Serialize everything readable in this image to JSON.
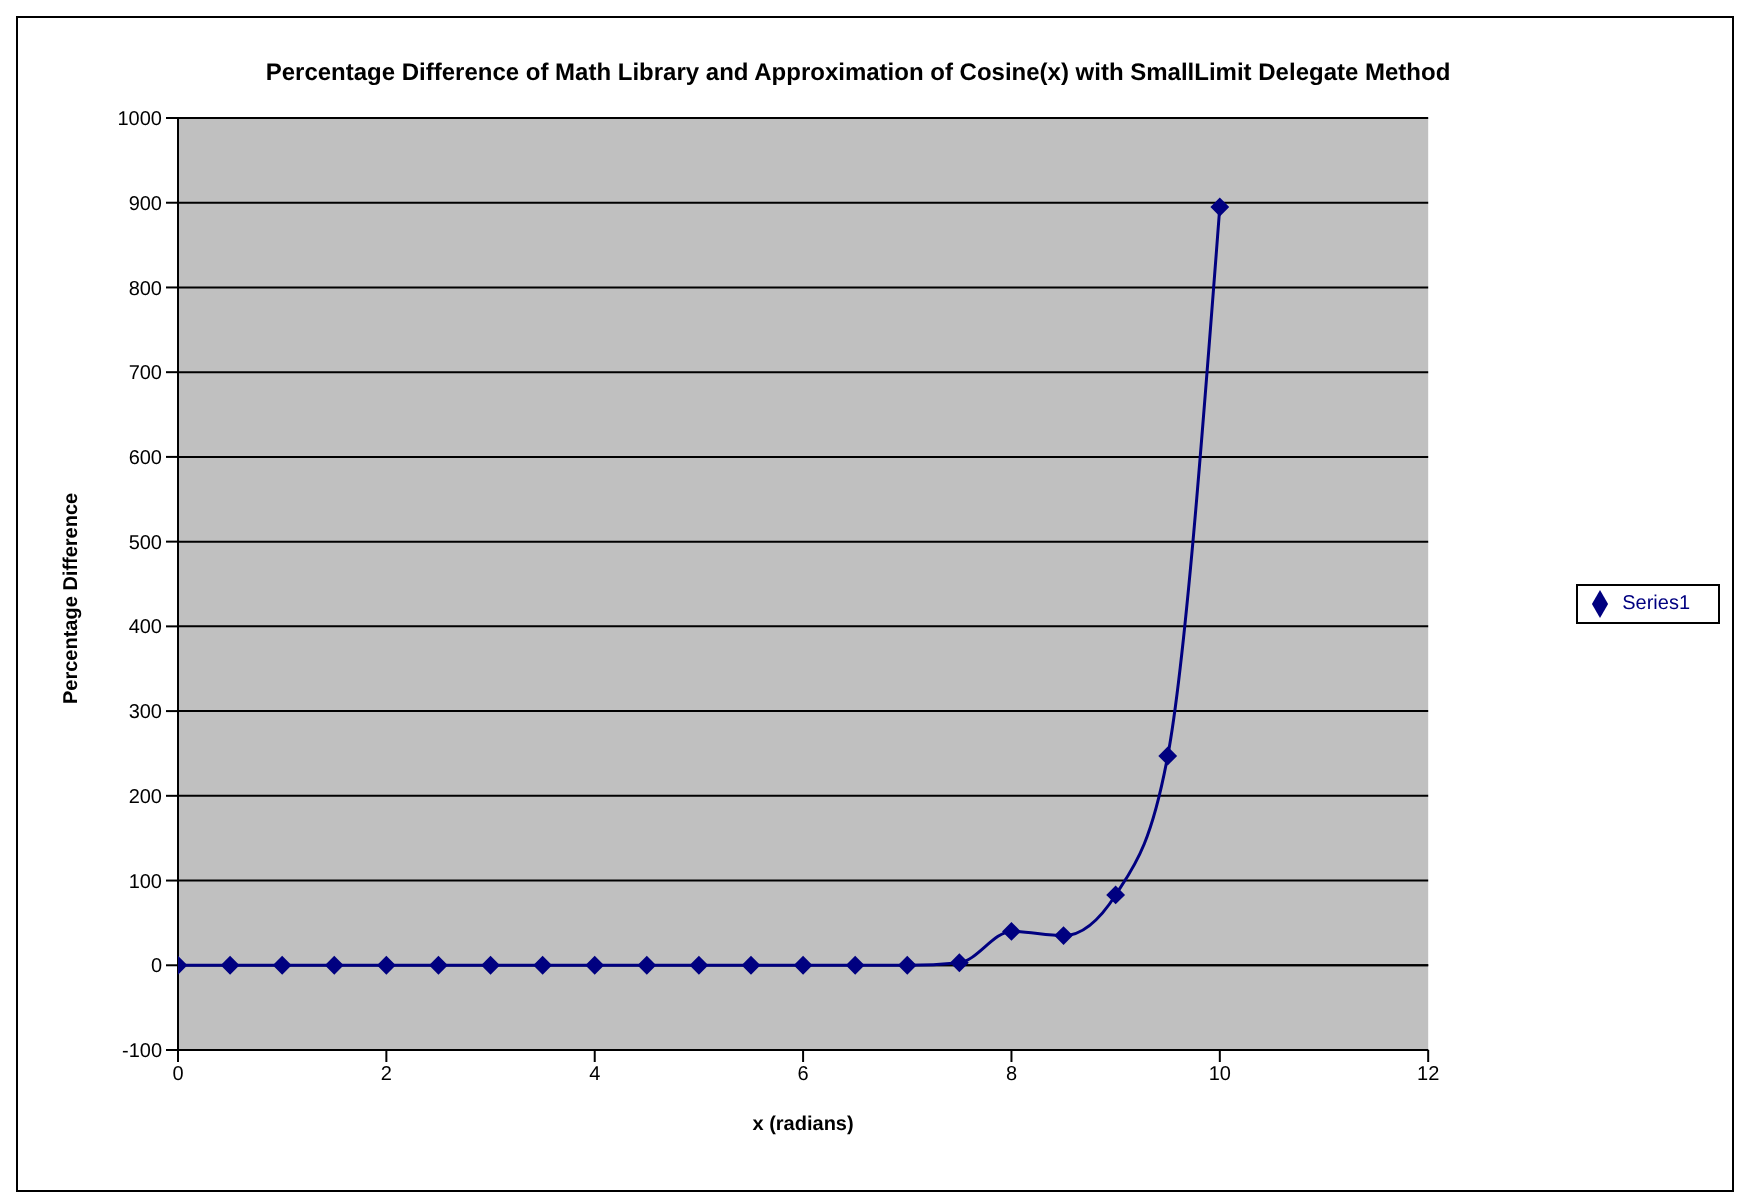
{
  "chart_data": {
    "type": "line",
    "title": "Percentage Difference of Math Library and Approximation of Cosine(x)  with SmallLimit Delegate Method",
    "xlabel": "x (radians)",
    "ylabel": "Percentage Difference",
    "x": [
      0,
      0.5,
      1,
      1.5,
      2,
      2.5,
      3,
      3.5,
      4,
      4.5,
      5,
      5.5,
      6,
      6.5,
      7,
      7.5,
      8,
      8.5,
      9,
      9.5,
      10
    ],
    "series": [
      {
        "name": "Series1",
        "color": "#000080",
        "values": [
          0,
          0,
          0,
          0,
          0,
          0,
          0,
          0,
          0,
          0,
          0,
          0,
          0,
          0,
          0,
          3,
          40,
          35,
          83,
          247,
          895
        ]
      }
    ],
    "xlim": [
      0,
      12
    ],
    "xticks": [
      0,
      2,
      4,
      6,
      8,
      10,
      12
    ],
    "ylim": [
      -100,
      1000
    ],
    "yticks": [
      -100,
      0,
      100,
      200,
      300,
      400,
      500,
      600,
      700,
      800,
      900,
      1000
    ],
    "grid": "y",
    "legend": "right",
    "marker": "diamond",
    "line_style": "solid"
  }
}
